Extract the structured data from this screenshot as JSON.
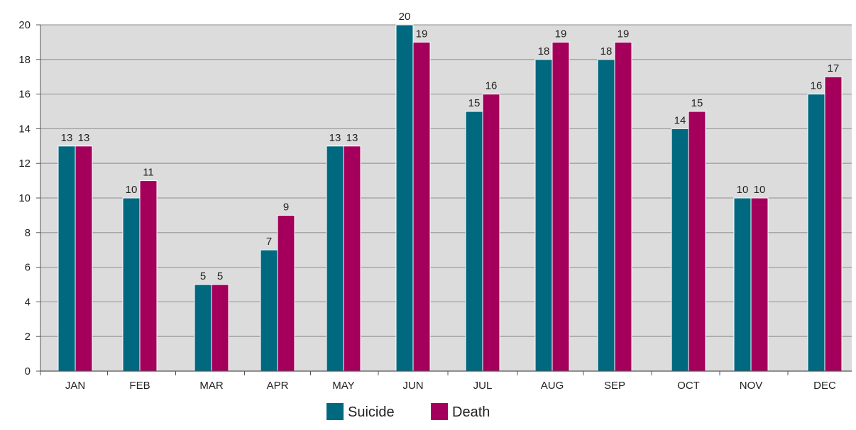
{
  "chart_data": {
    "type": "bar",
    "title": "",
    "xlabel": "",
    "ylabel": "",
    "categories": [
      "JAN",
      "FEB",
      "MAR",
      "APR",
      "MAY",
      "JUN",
      "JUL",
      "AUG",
      "SEP",
      "OCT",
      "NOV",
      "DEC"
    ],
    "series": [
      {
        "name": "Suicide",
        "color": "#00687f",
        "values": [
          13,
          10,
          5,
          7,
          13,
          20,
          15,
          18,
          18,
          14,
          10,
          16
        ]
      },
      {
        "name": "Death",
        "color": "#a4005b",
        "values": [
          13,
          11,
          5,
          9,
          13,
          19,
          16,
          19,
          19,
          15,
          10,
          17
        ]
      }
    ],
    "ylim": [
      0,
      20
    ],
    "yticks": [
      0,
      2,
      4,
      6,
      8,
      10,
      12,
      14,
      16,
      18,
      20
    ],
    "grid": true,
    "legend_position": "bottom-center",
    "plot_background": "#dcdcdc",
    "gridline_color": "#a0a0a0"
  }
}
